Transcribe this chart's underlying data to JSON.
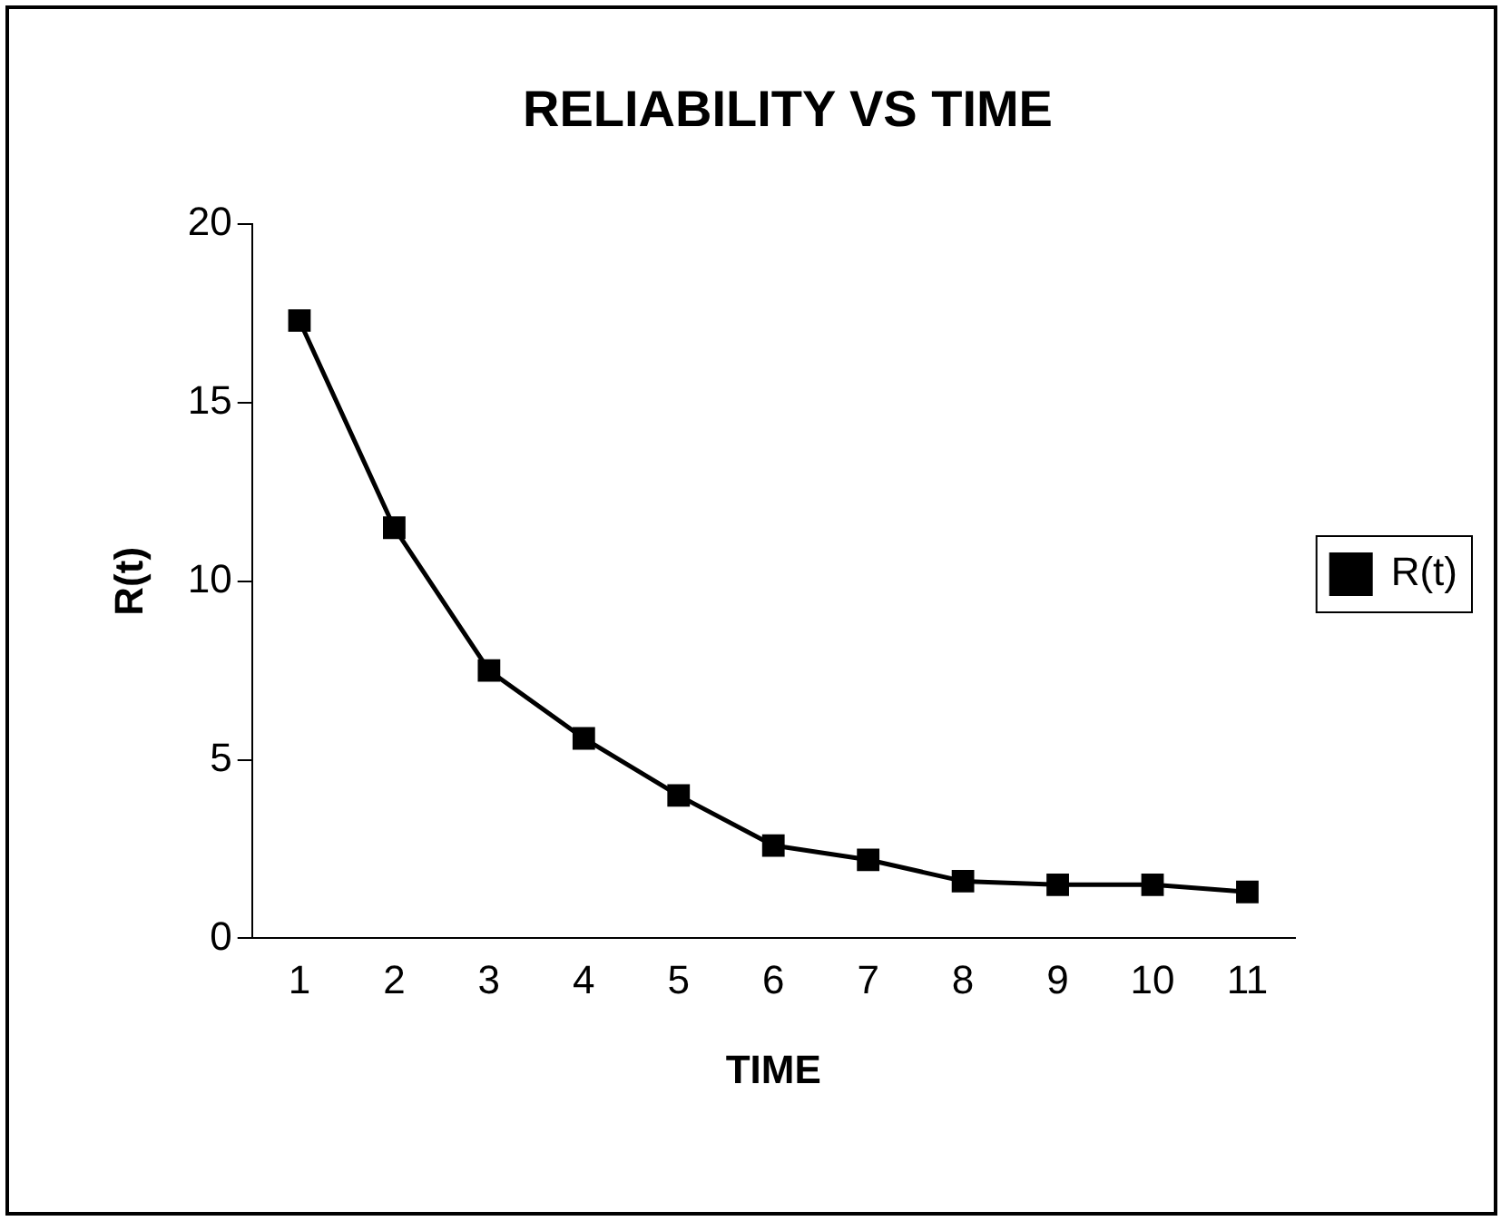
{
  "chart_data": {
    "type": "line",
    "title": "RELIABILITY VS TIME",
    "xlabel": "TIME",
    "ylabel": "R(t)",
    "categories": [
      "1",
      "2",
      "3",
      "4",
      "5",
      "6",
      "7",
      "8",
      "9",
      "10",
      "11"
    ],
    "series": [
      {
        "name": "R(t)",
        "color": "#000000",
        "values": [
          17.3,
          11.5,
          7.5,
          5.6,
          4.0,
          2.6,
          2.2,
          1.6,
          1.5,
          1.5,
          1.3
        ]
      }
    ],
    "ylim": [
      0,
      20
    ],
    "yticks": [
      0,
      5,
      10,
      15,
      20
    ],
    "grid": false,
    "legend": "right",
    "marker": "square",
    "line_style": "solid"
  }
}
